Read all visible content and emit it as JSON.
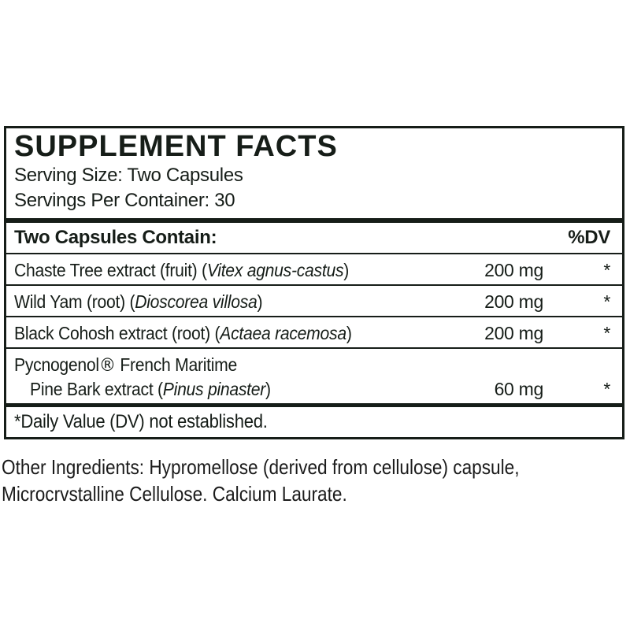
{
  "colors": {
    "ink": "#161d18",
    "footer_ink": "#1b1b1b"
  },
  "panel": {
    "title": "SUPPLEMENT FACTS",
    "serving_size": "Serving Size: Two Capsules",
    "servings_per_container": "Servings Per Container: 30",
    "header": {
      "left": "Two Capsules Contain:",
      "right": "%DV"
    },
    "rows": [
      {
        "name_prefix": "Chaste Tree extract (fruit) (",
        "species": "Vitex agnus-castus",
        "name_close": ")",
        "amount": "200 mg",
        "dv": "*"
      },
      {
        "name_prefix": "Wild Yam (root) (",
        "species": "Dioscorea villosa",
        "name_close": ")",
        "amount": "200 mg",
        "dv": "*"
      },
      {
        "name_prefix": "Black Cohosh extract (root) (",
        "species": "Actaea racemosa",
        "name_close": ")",
        "amount": "200 mg",
        "dv": "*"
      },
      {
        "line1_prefix": "Pycnogenol",
        "reg_mark": "®",
        "line1_suffix": " French Maritime",
        "line2_prefix": "Pine Bark extract (",
        "species": "Pinus pinaster",
        "name_close": ")",
        "amount": "60 mg",
        "dv": "*"
      }
    ],
    "footnote": "*Daily Value (DV) not established."
  },
  "footer": {
    "line1": "Other Ingredients: Hypromellose (derived from cellulose) capsule,",
    "line2": "Microcrvstalline Cellulose. Calcium Laurate."
  }
}
